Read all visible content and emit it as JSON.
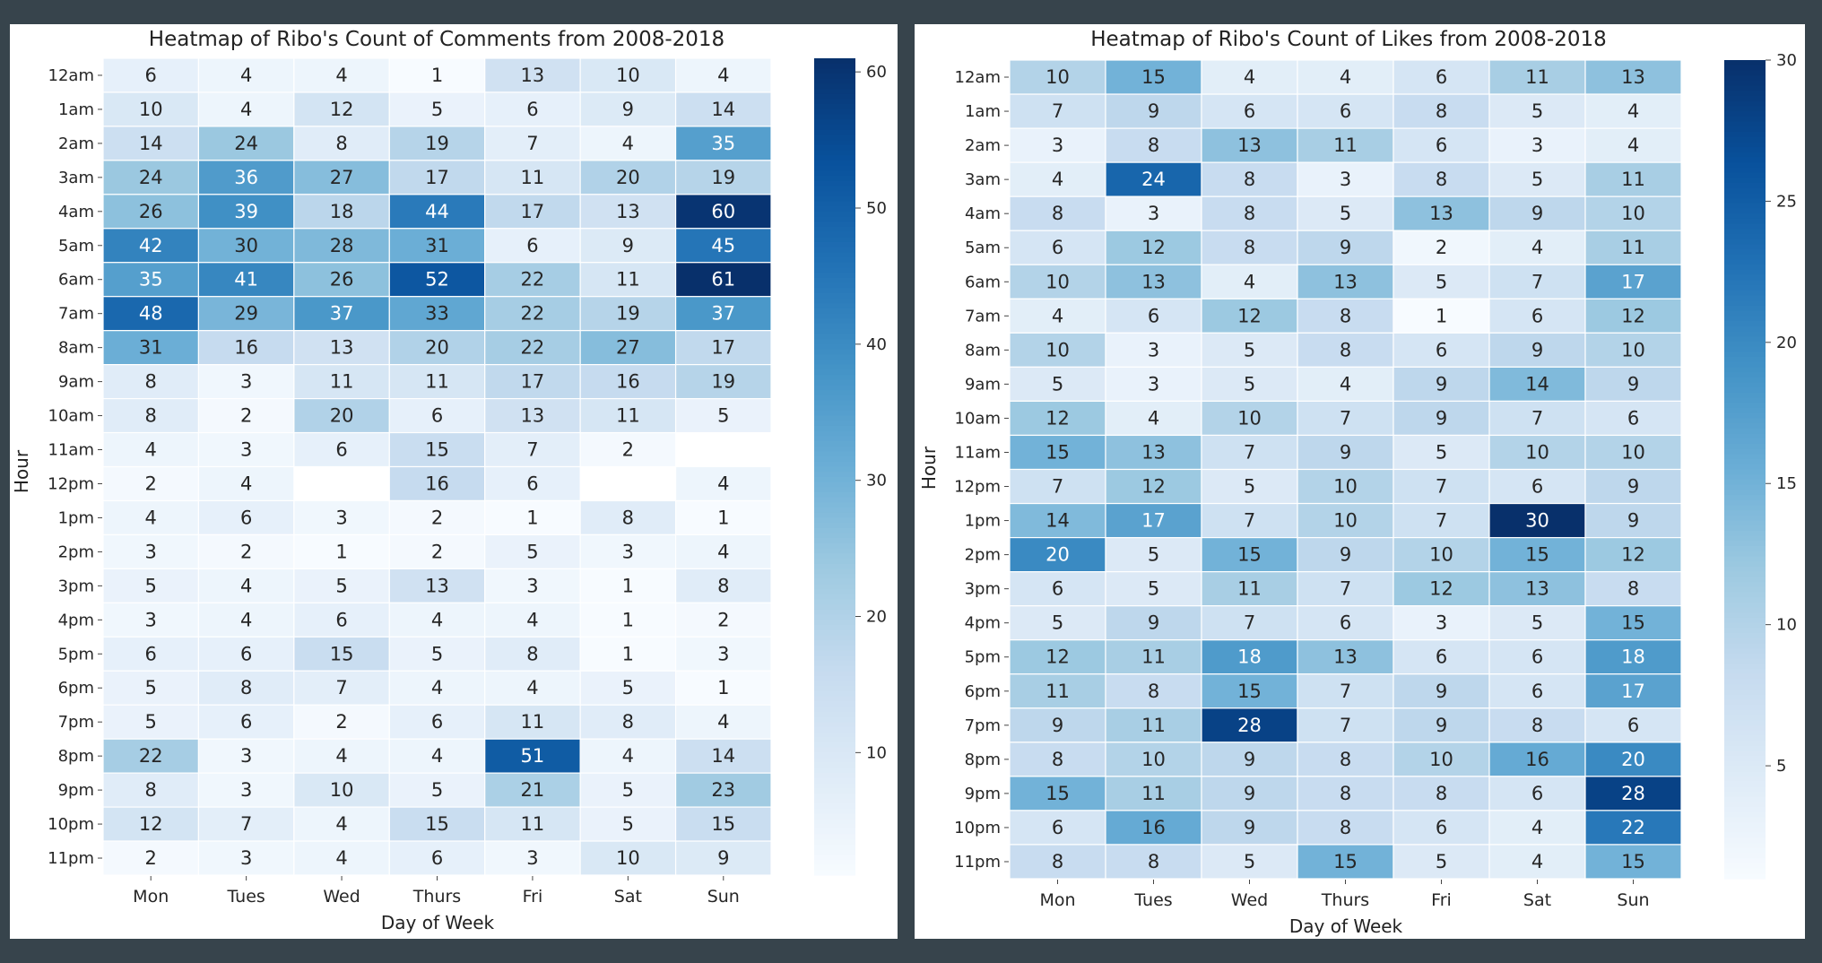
{
  "chart_data": [
    {
      "type": "heatmap",
      "title": "Heatmap of Ribo's Count of Comments from 2008-2018",
      "xlabel": "Day of Week",
      "ylabel": "Hour",
      "colormap": "Blues",
      "colorbar": {
        "min": 1,
        "max": 61,
        "ticks": [
          10,
          20,
          30,
          40,
          50,
          60
        ]
      },
      "x": [
        "Mon",
        "Tues",
        "Wed",
        "Thurs",
        "Fri",
        "Sat",
        "Sun"
      ],
      "y": [
        "12am",
        "1am",
        "2am",
        "3am",
        "4am",
        "5am",
        "6am",
        "7am",
        "8am",
        "9am",
        "10am",
        "11am",
        "12pm",
        "1pm",
        "2pm",
        "3pm",
        "4pm",
        "5pm",
        "6pm",
        "7pm",
        "8pm",
        "9pm",
        "10pm",
        "11pm"
      ],
      "values": [
        [
          6,
          4,
          4,
          1,
          13,
          10,
          4
        ],
        [
          10,
          4,
          12,
          5,
          6,
          9,
          14
        ],
        [
          14,
          24,
          8,
          19,
          7,
          4,
          35
        ],
        [
          24,
          36,
          27,
          17,
          11,
          20,
          19
        ],
        [
          26,
          39,
          18,
          44,
          17,
          13,
          60
        ],
        [
          42,
          30,
          28,
          31,
          6,
          9,
          45
        ],
        [
          35,
          41,
          26,
          52,
          22,
          11,
          61
        ],
        [
          48,
          29,
          37,
          33,
          22,
          19,
          37
        ],
        [
          31,
          16,
          13,
          20,
          22,
          27,
          17
        ],
        [
          8,
          3,
          11,
          11,
          17,
          16,
          19
        ],
        [
          8,
          2,
          20,
          6,
          13,
          11,
          5
        ],
        [
          4,
          3,
          6,
          15,
          7,
          2,
          null
        ],
        [
          2,
          4,
          null,
          16,
          6,
          null,
          4
        ],
        [
          4,
          6,
          3,
          2,
          1,
          8,
          1
        ],
        [
          3,
          2,
          1,
          2,
          5,
          3,
          4
        ],
        [
          5,
          4,
          5,
          13,
          3,
          1,
          8
        ],
        [
          3,
          4,
          6,
          4,
          4,
          1,
          2
        ],
        [
          6,
          6,
          15,
          5,
          8,
          1,
          3
        ],
        [
          5,
          8,
          7,
          4,
          4,
          5,
          1
        ],
        [
          5,
          6,
          2,
          6,
          11,
          8,
          4
        ],
        [
          22,
          3,
          4,
          4,
          51,
          4,
          14
        ],
        [
          8,
          3,
          10,
          5,
          21,
          5,
          23
        ],
        [
          12,
          7,
          4,
          15,
          11,
          5,
          15
        ],
        [
          2,
          3,
          4,
          6,
          3,
          10,
          9
        ]
      ]
    },
    {
      "type": "heatmap",
      "title": "Heatmap of Ribo's Count of Likes from 2008-2018",
      "xlabel": "Day of Week",
      "ylabel": "Hour",
      "colormap": "Blues",
      "colorbar": {
        "min": 1,
        "max": 30,
        "ticks": [
          5,
          10,
          15,
          20,
          25,
          30
        ]
      },
      "x": [
        "Mon",
        "Tues",
        "Wed",
        "Thurs",
        "Fri",
        "Sat",
        "Sun"
      ],
      "y": [
        "12am",
        "1am",
        "2am",
        "3am",
        "4am",
        "5am",
        "6am",
        "7am",
        "8am",
        "9am",
        "10am",
        "11am",
        "12pm",
        "1pm",
        "2pm",
        "3pm",
        "4pm",
        "5pm",
        "6pm",
        "7pm",
        "8pm",
        "9pm",
        "10pm",
        "11pm"
      ],
      "values": [
        [
          10,
          15,
          4,
          4,
          6,
          11,
          13
        ],
        [
          7,
          9,
          6,
          6,
          8,
          5,
          4
        ],
        [
          3,
          8,
          13,
          11,
          6,
          3,
          4
        ],
        [
          4,
          24,
          8,
          3,
          8,
          5,
          11
        ],
        [
          8,
          3,
          8,
          5,
          13,
          9,
          10
        ],
        [
          6,
          12,
          8,
          9,
          2,
          4,
          11
        ],
        [
          10,
          13,
          4,
          13,
          5,
          7,
          17
        ],
        [
          4,
          6,
          12,
          8,
          1,
          6,
          12
        ],
        [
          10,
          3,
          5,
          8,
          6,
          9,
          10
        ],
        [
          5,
          3,
          5,
          4,
          9,
          14,
          9
        ],
        [
          12,
          4,
          10,
          7,
          9,
          7,
          6
        ],
        [
          15,
          13,
          7,
          9,
          5,
          10,
          10
        ],
        [
          7,
          12,
          5,
          10,
          7,
          6,
          9
        ],
        [
          14,
          17,
          7,
          10,
          7,
          30,
          9
        ],
        [
          20,
          5,
          15,
          9,
          10,
          15,
          12
        ],
        [
          6,
          5,
          11,
          7,
          12,
          13,
          8
        ],
        [
          5,
          9,
          7,
          6,
          3,
          5,
          15
        ],
        [
          12,
          11,
          18,
          13,
          6,
          6,
          18
        ],
        [
          11,
          8,
          15,
          7,
          9,
          6,
          17
        ],
        [
          9,
          11,
          28,
          7,
          9,
          8,
          6
        ],
        [
          8,
          10,
          9,
          8,
          10,
          16,
          20
        ],
        [
          15,
          11,
          9,
          8,
          8,
          6,
          28
        ],
        [
          6,
          16,
          9,
          8,
          6,
          4,
          22
        ],
        [
          8,
          8,
          5,
          15,
          5,
          4,
          15
        ]
      ]
    }
  ]
}
